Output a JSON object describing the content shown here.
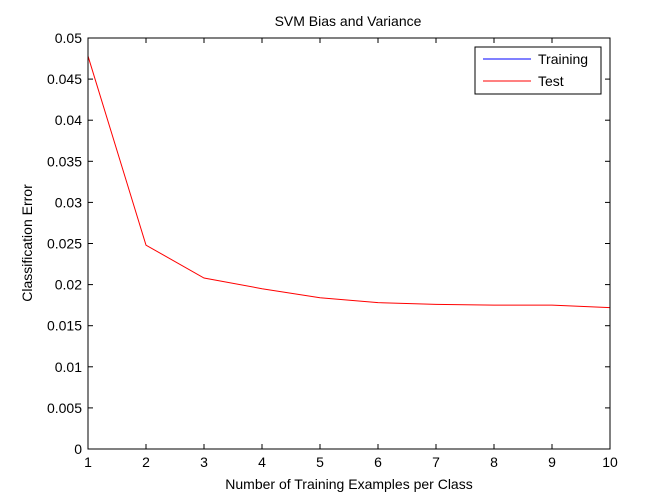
{
  "chart_data": {
    "type": "line",
    "title": "SVM Bias and Variance",
    "xlabel": "Number of Training Examples per Class",
    "ylabel": "Classification Error",
    "xlim": [
      1,
      10
    ],
    "ylim": [
      0,
      0.05
    ],
    "xticks": [
      "1",
      "2",
      "3",
      "4",
      "5",
      "6",
      "7",
      "8",
      "9",
      "10"
    ],
    "yticks": [
      "0",
      "0.005",
      "0.01",
      "0.015",
      "0.02",
      "0.025",
      "0.03",
      "0.035",
      "0.04",
      "0.045",
      "0.05"
    ],
    "grid": false,
    "legend_position": "top-right",
    "series": [
      {
        "name": "Training",
        "color": "#0000ff",
        "x": [
          1,
          2,
          3,
          4,
          5,
          6,
          7,
          8,
          9,
          10
        ],
        "y": [
          0,
          0,
          0,
          0,
          0,
          0,
          0,
          0,
          0,
          0
        ]
      },
      {
        "name": "Test",
        "color": "#ff0000",
        "x": [
          1,
          2,
          3,
          4,
          5,
          6,
          7,
          8,
          9,
          10
        ],
        "y": [
          0.0478,
          0.0248,
          0.0208,
          0.0195,
          0.0184,
          0.0178,
          0.0176,
          0.0175,
          0.0175,
          0.0172
        ]
      }
    ]
  }
}
